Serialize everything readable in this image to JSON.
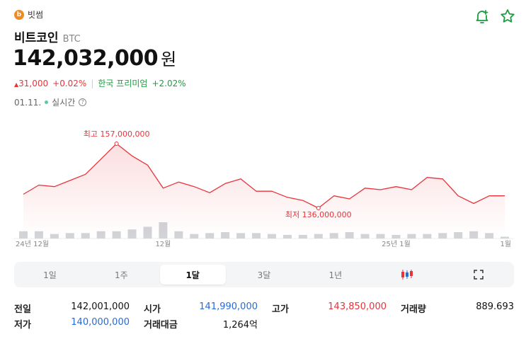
{
  "exchange": {
    "name": "빗썸",
    "logo_letter": "b"
  },
  "coin": {
    "name": "비트코인",
    "symbol": "BTC"
  },
  "price": {
    "value": "142,032,000",
    "unit": "원"
  },
  "change": {
    "amount": "31,000",
    "percent": "+0.02%",
    "premium_label": "한국 프리미엄",
    "premium_value": "+2.02%"
  },
  "time": {
    "date": "01.11.",
    "live_label": "실시간"
  },
  "icons": {
    "bell": "bell-plus-icon",
    "star": "star-icon",
    "candles": "candlestick-icon",
    "expand": "expand-icon"
  },
  "colors": {
    "line": "#e8333b",
    "up": "#e8333b",
    "down": "#2a6ad6",
    "premium": "#1a9e3f",
    "volume": "#d2d4d8"
  },
  "chart_data": {
    "type": "line",
    "series": [
      {
        "values": [
          140.5,
          143.5,
          143.0,
          145.0,
          147.0,
          152.0,
          157.0,
          153.0,
          150.0,
          142.5,
          144.5,
          143.0,
          141.0,
          144.0,
          145.5,
          141.5,
          141.5,
          139.5,
          138.5,
          136.0,
          140.0,
          139.0,
          142.5,
          142.0,
          143.0,
          142.0,
          146.0,
          145.5,
          140.0,
          137.5,
          140.0,
          140.0
        ]
      }
    ],
    "volume": [
      4,
      4,
      2.5,
      3,
      3,
      4,
      4,
      5,
      6.5,
      9,
      4,
      2.5,
      3,
      3.5,
      3,
      3,
      2.5,
      2,
      2,
      2.5,
      3,
      3.5,
      2.5,
      2.5,
      2,
      2.5,
      2.5,
      3,
      3.5,
      4,
      3,
      1
    ],
    "x_ticks": [
      {
        "index": 1,
        "label": "24년 12월"
      },
      {
        "index": 9,
        "label": "12월"
      },
      {
        "index": 24,
        "label": "25년 1월"
      },
      {
        "index": 31,
        "label": "1월"
      }
    ],
    "annotations": {
      "high": {
        "index": 6,
        "label": "최고 157,000,000"
      },
      "low": {
        "index": 19,
        "label": "최저 136,000,000"
      }
    },
    "ylim": [
      130.0,
      160.0
    ]
  },
  "periods": [
    {
      "label": "1일",
      "active": false
    },
    {
      "label": "1주",
      "active": false
    },
    {
      "label": "1달",
      "active": true
    },
    {
      "label": "3달",
      "active": false
    },
    {
      "label": "1년",
      "active": false
    }
  ],
  "stats": {
    "prev_close": {
      "label": "전일",
      "value": "142,001,000"
    },
    "open": {
      "label": "시가",
      "value": "141,990,000"
    },
    "high": {
      "label": "고가",
      "value": "143,850,000"
    },
    "volume": {
      "label": "거래량",
      "value": "889.693"
    },
    "low": {
      "label": "저가",
      "value": "140,000,000"
    },
    "turnover": {
      "label": "거래대금",
      "value": "1,264억"
    }
  }
}
